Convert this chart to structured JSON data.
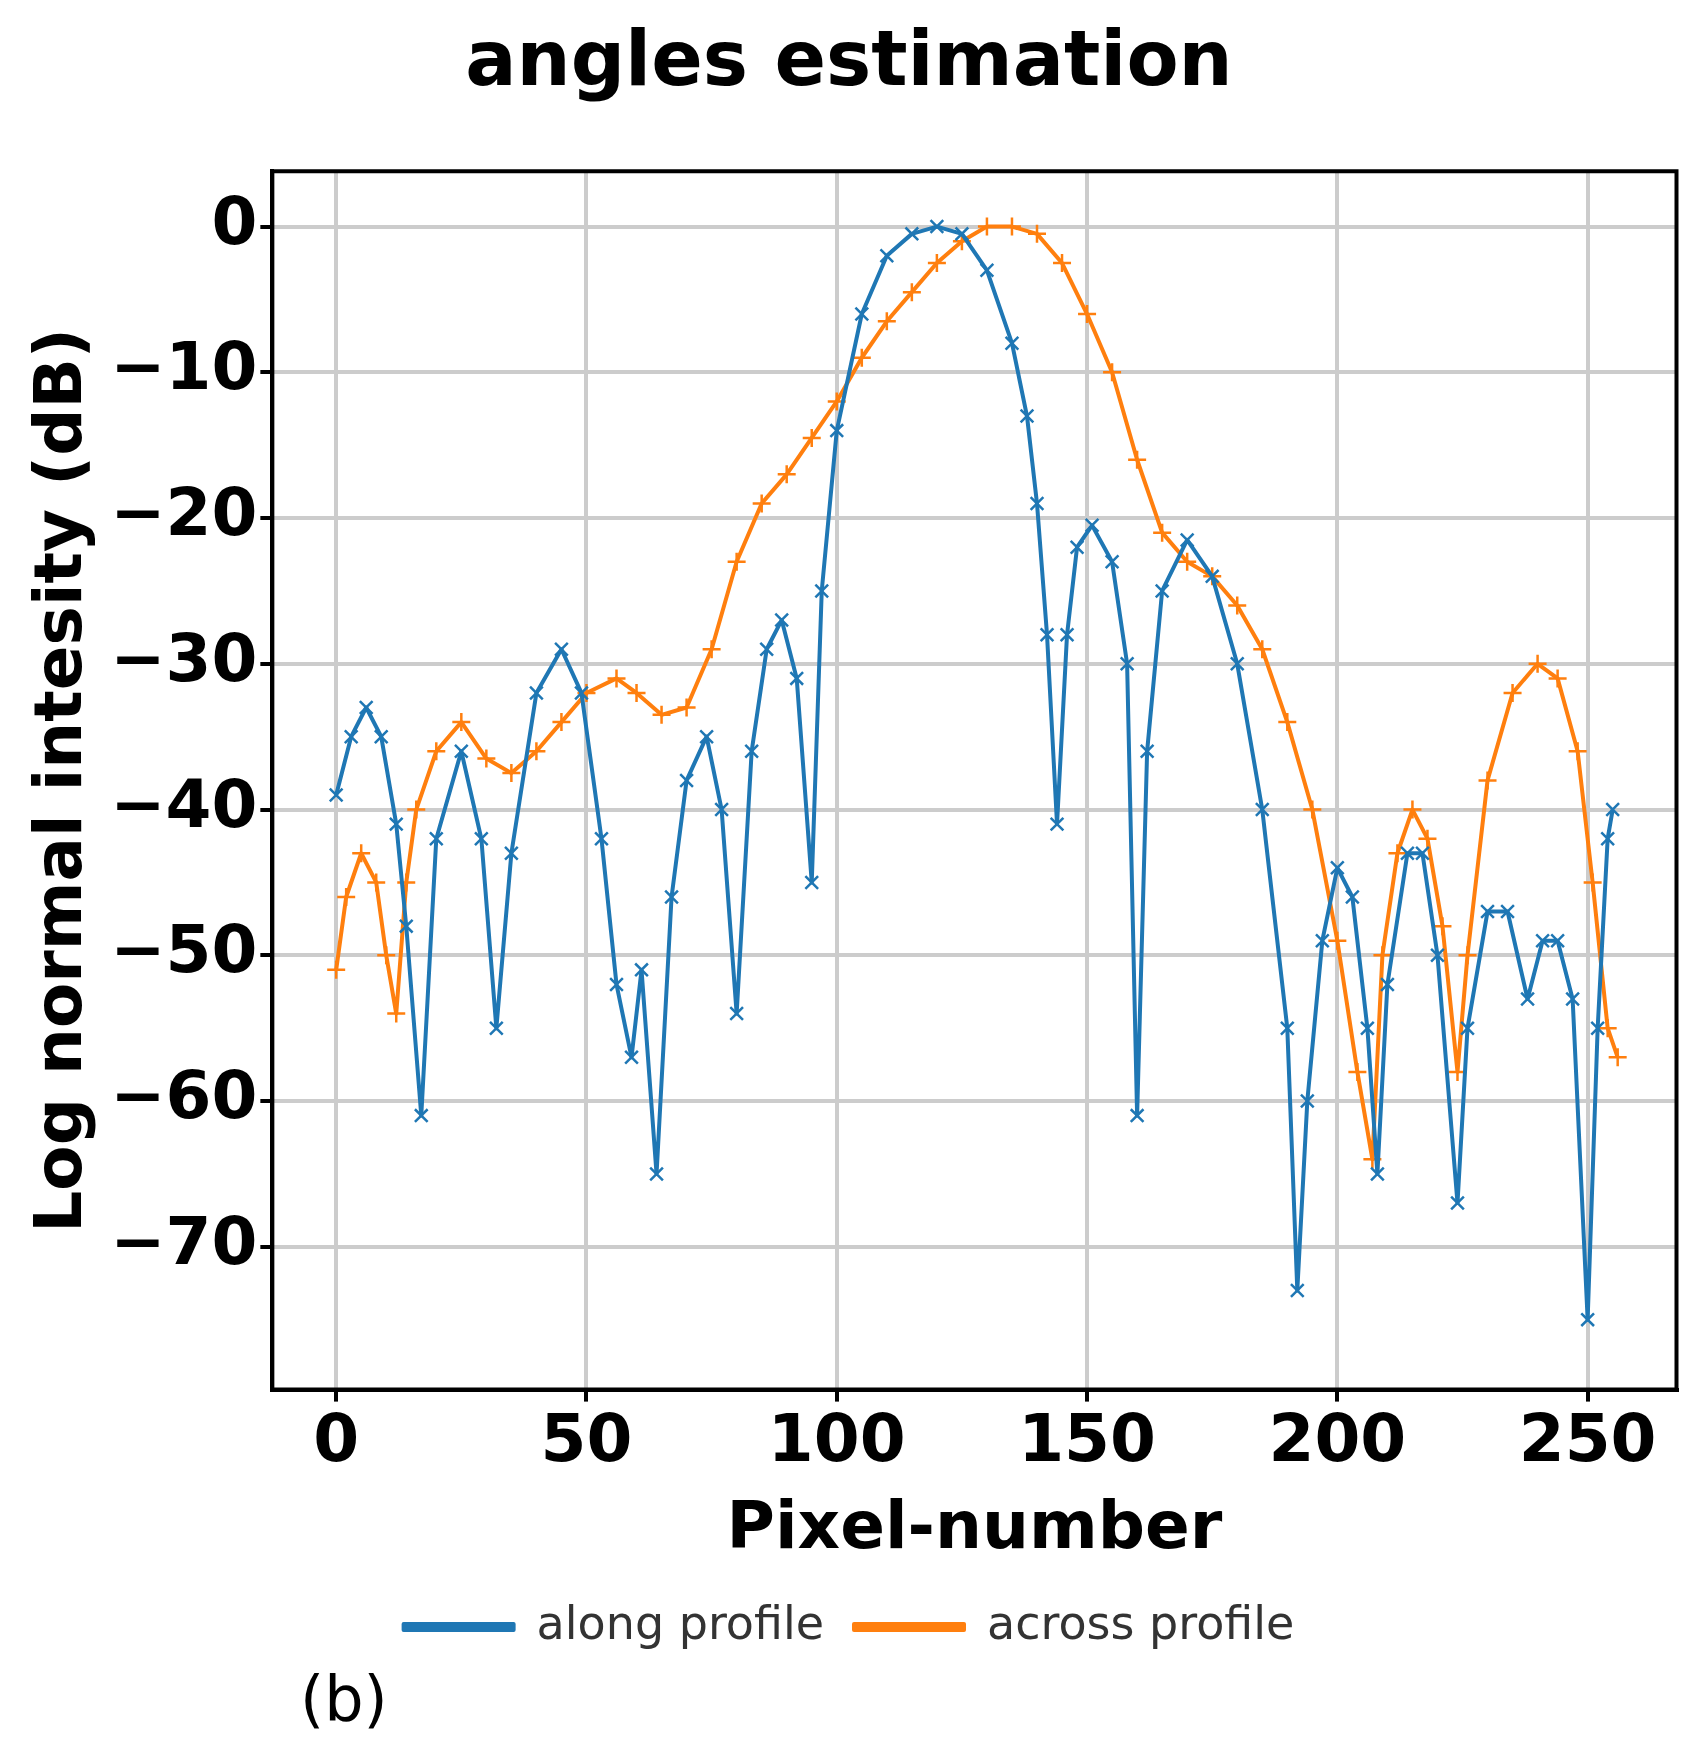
{
  "chart_data": {
    "type": "line",
    "title": "angles estimation",
    "xlabel": "Pixel-number",
    "ylabel": "Log normal intesity (dB)",
    "annotations": [
      "(b)"
    ],
    "xlim": [
      -12.75,
      267.75
    ],
    "xticks": [
      0,
      50,
      100,
      150,
      200,
      250
    ],
    "ylim": [
      -79.8,
      3.8
    ],
    "yticks": [
      0,
      -10,
      -20,
      -30,
      -40,
      -50,
      -60,
      -70
    ],
    "grid": true,
    "legend": "bottom",
    "series": [
      {
        "name": "along profile",
        "color": "#1f77b4",
        "marker": "cross",
        "x": [
          0,
          3,
          6,
          9,
          12,
          14,
          17,
          20,
          25,
          29,
          32,
          35,
          40,
          45,
          49,
          53,
          56,
          59,
          61,
          64,
          67,
          70,
          74,
          77,
          80,
          83,
          86,
          89,
          92,
          95,
          97,
          100,
          105,
          110,
          115,
          120,
          125,
          130,
          135,
          138,
          140,
          142,
          144,
          146,
          148,
          151,
          155,
          158,
          160,
          162,
          165,
          170,
          175,
          180,
          185,
          190,
          192,
          194,
          197,
          200,
          203,
          206,
          208,
          210,
          214,
          217,
          220,
          224,
          226,
          230,
          234,
          238,
          241,
          244,
          247,
          250,
          252,
          254,
          255
        ],
        "values": [
          -39,
          -35,
          -33,
          -35,
          -41,
          -48,
          -61,
          -42,
          -36,
          -42,
          -55,
          -43,
          -32,
          -29,
          -32,
          -42,
          -52,
          -57,
          -51,
          -65,
          -46,
          -38,
          -35,
          -40,
          -54,
          -36,
          -29,
          -27,
          -31,
          -45,
          -25,
          -14,
          -6,
          -2,
          -0.5,
          0,
          -0.5,
          -3,
          -8,
          -13,
          -19,
          -28,
          -41,
          -28,
          -22,
          -20.5,
          -23,
          -30,
          -61,
          -36,
          -25,
          -21.5,
          -24,
          -30,
          -40,
          -55,
          -73,
          -60,
          -49,
          -44,
          -46,
          -55,
          -65,
          -52,
          -43,
          -43,
          -50,
          -67,
          -55,
          -47,
          -47,
          -53,
          -49,
          -49,
          -53,
          -75,
          -55,
          -42,
          -40
        ]
      },
      {
        "name": "across profile",
        "color": "#ff7f0e",
        "marker": "plus",
        "x": [
          0,
          2,
          5,
          8,
          10,
          12,
          14,
          16,
          20,
          25,
          30,
          35,
          40,
          45,
          50,
          56,
          60,
          65,
          70,
          75,
          80,
          85,
          90,
          95,
          100,
          105,
          110,
          115,
          120,
          125,
          130,
          135,
          140,
          145,
          150,
          155,
          160,
          165,
          170,
          175,
          180,
          185,
          190,
          195,
          200,
          204,
          207,
          209,
          212,
          215,
          218,
          221,
          224,
          226,
          230,
          235,
          240,
          244,
          248,
          251,
          254,
          256
        ],
        "values": [
          -51,
          -46,
          -43,
          -45,
          -50,
          -54,
          -45,
          -40,
          -36,
          -34,
          -36.5,
          -37.5,
          -36,
          -34,
          -32,
          -31,
          -32,
          -33.5,
          -33,
          -29,
          -23,
          -19,
          -17,
          -14.5,
          -12,
          -9,
          -6.5,
          -4.5,
          -2.5,
          -1,
          0,
          0,
          -0.5,
          -2.5,
          -6,
          -10,
          -16,
          -21,
          -23,
          -24,
          -26,
          -29,
          -34,
          -40,
          -49,
          -58,
          -64,
          -50,
          -43,
          -40,
          -42,
          -48,
          -58,
          -50,
          -38,
          -32,
          -30,
          -31,
          -36,
          -45,
          -55,
          -57
        ]
      }
    ]
  }
}
